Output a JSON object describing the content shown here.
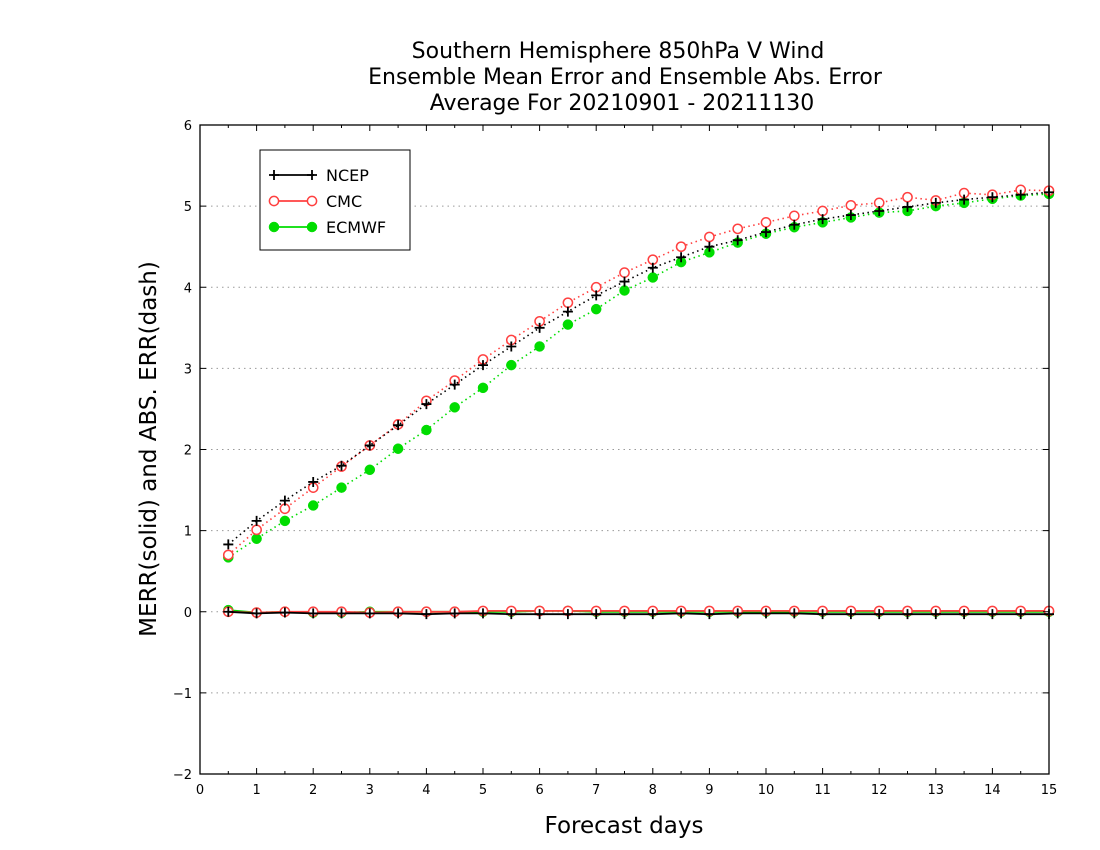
{
  "chart_data": {
    "type": "line",
    "title_lines": [
      "Southern Hemisphere 850hPa V Wind",
      "Ensemble Mean Error and Ensemble Abs. Error",
      "Average For 20210901 - 20211130"
    ],
    "xlabel": "Forecast days",
    "ylabel": "MERR(solid) and ABS. ERR(dash)",
    "xlim": [
      0,
      15
    ],
    "ylim": [
      -2,
      6
    ],
    "xticks": [
      "0",
      "1",
      "2",
      "3",
      "4",
      "5",
      "6",
      "7",
      "8",
      "9",
      "10",
      "11",
      "12",
      "13",
      "14",
      "15"
    ],
    "yticks": [
      "−2",
      "−1",
      "0",
      "1",
      "2",
      "3",
      "4",
      "5",
      "6"
    ],
    "grid": "horizontal dotted",
    "legend_position": "top-left",
    "x": [
      0.5,
      1,
      1.5,
      2,
      2.5,
      3,
      3.5,
      4,
      4.5,
      5,
      5.5,
      6,
      6.5,
      7,
      7.5,
      8,
      8.5,
      9,
      9.5,
      10,
      10.5,
      11,
      11.5,
      12,
      12.5,
      13,
      13.5,
      14,
      14.5,
      15
    ],
    "series": [
      {
        "name": "NCEP",
        "color": "#000000",
        "marker": "plus",
        "abs_error": [
          0.83,
          1.12,
          1.37,
          1.6,
          1.8,
          2.05,
          2.3,
          2.56,
          2.8,
          3.04,
          3.27,
          3.5,
          3.7,
          3.9,
          4.07,
          4.24,
          4.37,
          4.5,
          4.58,
          4.68,
          4.77,
          4.84,
          4.89,
          4.94,
          4.99,
          5.04,
          5.08,
          5.11,
          5.14,
          5.17
        ],
        "mean_error": [
          0.0,
          -0.02,
          -0.01,
          -0.02,
          -0.02,
          -0.02,
          -0.02,
          -0.03,
          -0.02,
          -0.02,
          -0.03,
          -0.03,
          -0.03,
          -0.03,
          -0.03,
          -0.03,
          -0.02,
          -0.03,
          -0.02,
          -0.02,
          -0.02,
          -0.03,
          -0.03,
          -0.03,
          -0.03,
          -0.03,
          -0.03,
          -0.03,
          -0.03,
          -0.03
        ]
      },
      {
        "name": "CMC",
        "color": "#ff4040",
        "marker": "open-circle",
        "abs_error": [
          0.7,
          1.01,
          1.27,
          1.53,
          1.79,
          2.05,
          2.31,
          2.6,
          2.85,
          3.11,
          3.35,
          3.58,
          3.81,
          4.0,
          4.18,
          4.34,
          4.5,
          4.62,
          4.72,
          4.8,
          4.88,
          4.94,
          5.01,
          5.04,
          5.11,
          5.07,
          5.16,
          5.14,
          5.2,
          5.19
        ],
        "mean_error": [
          0.0,
          -0.01,
          0.0,
          0.0,
          0.0,
          -0.01,
          0.0,
          0.0,
          0.0,
          0.01,
          0.01,
          0.01,
          0.01,
          0.01,
          0.01,
          0.01,
          0.01,
          0.01,
          0.01,
          0.01,
          0.01,
          0.01,
          0.01,
          0.01,
          0.01,
          0.01,
          0.01,
          0.01,
          0.01,
          0.01
        ]
      },
      {
        "name": "ECMWF",
        "color": "#00dd00",
        "marker": "filled-circle",
        "abs_error": [
          0.67,
          0.9,
          1.12,
          1.31,
          1.53,
          1.75,
          2.01,
          2.24,
          2.52,
          2.76,
          3.04,
          3.27,
          3.54,
          3.73,
          3.96,
          4.12,
          4.31,
          4.43,
          4.55,
          4.66,
          4.74,
          4.8,
          4.86,
          4.92,
          4.94,
          5.0,
          5.04,
          5.09,
          5.13,
          5.15
        ],
        "mean_error": [
          0.02,
          -0.01,
          0.0,
          -0.01,
          -0.01,
          0.0,
          0.0,
          0.0,
          0.0,
          0.0,
          0.0,
          0.01,
          0.01,
          0.0,
          0.0,
          0.0,
          0.0,
          0.0,
          0.0,
          0.0,
          0.0,
          0.0,
          0.0,
          0.0,
          0.0,
          0.0,
          0.0,
          0.0,
          0.0,
          0.0
        ]
      }
    ]
  }
}
